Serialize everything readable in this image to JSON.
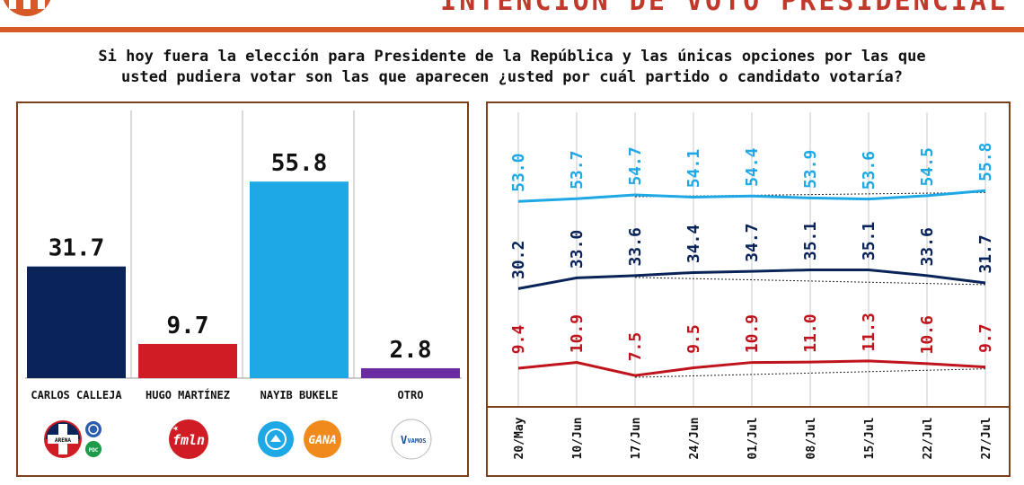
{
  "header": {
    "title": "INTENCIÓN DE VOTO PRESIDENCIAL"
  },
  "question": {
    "line1": "Si hoy fuera la elección para Presidente de la República y las únicas opciones por las que",
    "line2": "usted pudiera votar son las que aparecen ¿usted por cuál partido o candidato votaría?"
  },
  "party_logos": {
    "calleja": [
      "ARENA",
      "PCN",
      "PDC"
    ],
    "martinez": [
      "fmln"
    ],
    "bukele": [
      "GANA"
    ],
    "otro": [
      "VAMOS"
    ]
  },
  "chart_data": [
    {
      "type": "bar",
      "categories": [
        "CARLOS CALLEJA",
        "HUGO MARTÍNEZ",
        "NAYIB BUKELE",
        "OTRO"
      ],
      "values": [
        31.7,
        9.7,
        55.8,
        2.8
      ],
      "value_labels": [
        "31.7",
        "9.7",
        "55.8",
        "2.8"
      ],
      "colors": [
        "#0a2459",
        "#d01c24",
        "#1ea8e6",
        "#6a2ca0"
      ],
      "ylim": [
        0,
        70
      ]
    },
    {
      "type": "line",
      "x": [
        "20/May",
        "10/Jun",
        "17/Jun",
        "24/Jun",
        "01/Jul",
        "08/Jul",
        "15/Jul",
        "22/Jul",
        "27/Jul"
      ],
      "ylim": [
        0,
        60
      ],
      "series": [
        {
          "values": [
            53.0,
            53.7,
            54.7,
            54.1,
            54.4,
            53.9,
            53.6,
            54.5,
            55.8
          ],
          "labels": [
            "53.0",
            "53.7",
            "54.7",
            "54.1",
            "54.4",
            "53.9",
            "53.6",
            "54.5",
            "55.8"
          ],
          "color": "#1ea8e6"
        },
        {
          "values": [
            30.2,
            33.0,
            33.6,
            34.4,
            34.7,
            35.1,
            35.1,
            33.6,
            31.7
          ],
          "labels": [
            "30.2",
            "33.0",
            "33.6",
            "34.4",
            "34.7",
            "35.1",
            "35.1",
            "33.6",
            "31.7"
          ],
          "color": "#0a2459"
        },
        {
          "values": [
            9.4,
            10.9,
            7.5,
            9.5,
            10.9,
            11.0,
            11.3,
            10.6,
            9.7
          ],
          "labels": [
            "9.4",
            "10.9",
            "7.5",
            "9.5",
            "10.9",
            "11.0",
            "11.3",
            "10.6",
            "9.7"
          ],
          "color": "#c0141c"
        }
      ]
    }
  ]
}
